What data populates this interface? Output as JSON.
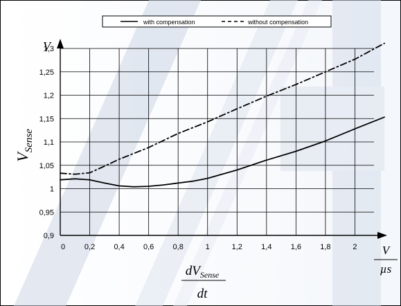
{
  "chart_data": {
    "type": "line",
    "title": "",
    "xlabel": {
      "numerator": "dV",
      "numerator_sub": "Sense",
      "denominator": "dt"
    },
    "ylabel": {
      "main": "V",
      "sub": "Sense"
    },
    "x_unit": {
      "numerator": "V",
      "denominator": "µs"
    },
    "y_unit": "V",
    "xlim": [
      0,
      2.2
    ],
    "ylim": [
      0.9,
      1.3
    ],
    "x_ticks": [
      0,
      0.2,
      0.4,
      0.6,
      0.8,
      1,
      1.2,
      1.4,
      1.6,
      1.8,
      2
    ],
    "x_tick_labels": [
      "0",
      "0,2",
      "0,4",
      "0,6",
      "0,8",
      "1",
      "1,2",
      "1,4",
      "1,6",
      "1,8",
      "2"
    ],
    "y_ticks": [
      0.9,
      0.95,
      1,
      1.05,
      1.1,
      1.15,
      1.2,
      1.25,
      1.3
    ],
    "y_tick_labels": [
      "0,9",
      "0,95",
      "1",
      "1,05",
      "1,1",
      "1,15",
      "1,2",
      "1,25",
      "1,3"
    ],
    "grid": true,
    "legend_position": "top",
    "series": [
      {
        "name": "with compensation",
        "style": "solid",
        "color": "#000000",
        "x": [
          0,
          0.1,
          0.2,
          0.3,
          0.4,
          0.5,
          0.6,
          0.7,
          0.8,
          0.9,
          1,
          1.2,
          1.4,
          1.6,
          1.8,
          2,
          2.2
        ],
        "y": [
          1.019,
          1.021,
          1.019,
          1.012,
          1.006,
          1.004,
          1.005,
          1.008,
          1.012,
          1.016,
          1.022,
          1.04,
          1.061,
          1.08,
          1.102,
          1.128,
          1.153
        ]
      },
      {
        "name": "without compensation",
        "style": "dashed",
        "color": "#000000",
        "x": [
          0,
          0.1,
          0.2,
          0.3,
          0.4,
          0.6,
          0.8,
          1,
          1.2,
          1.4,
          1.6,
          1.8,
          2,
          2.2
        ],
        "y": [
          1.033,
          1.031,
          1.034,
          1.048,
          1.063,
          1.088,
          1.118,
          1.143,
          1.171,
          1.198,
          1.223,
          1.25,
          1.277,
          1.311
        ]
      }
    ]
  }
}
